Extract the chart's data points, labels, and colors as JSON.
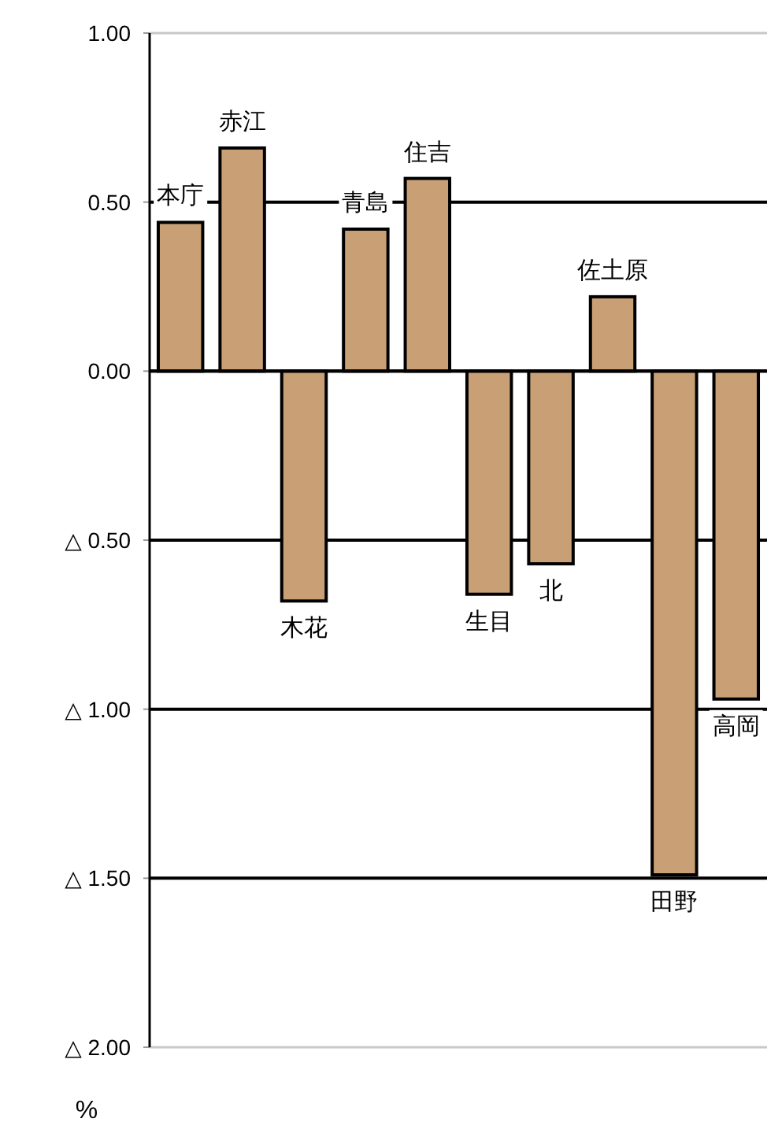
{
  "chart_data": {
    "type": "bar",
    "categories": [
      "本庁",
      "赤江",
      "木花",
      "青島",
      "住吉",
      "生目",
      "北",
      "佐土原",
      "田野",
      "高岡"
    ],
    "values": [
      0.44,
      0.66,
      -0.68,
      0.42,
      0.57,
      -0.66,
      -0.57,
      0.22,
      -1.49,
      -0.97
    ],
    "color": "#c9a076",
    "ylim": [
      -2,
      1
    ],
    "yticks": [
      {
        "value": 1,
        "label": "1.00"
      },
      {
        "value": 0.5,
        "label": "0.50"
      },
      {
        "value": 0,
        "label": "0.00"
      },
      {
        "value": -0.5,
        "label": "△ 0.50"
      },
      {
        "value": -1,
        "label": "△ 1.00"
      },
      {
        "value": -1.5,
        "label": "△ 1.50"
      },
      {
        "value": -2,
        "label": "△ 2.00"
      }
    ],
    "ylabel": "%",
    "grid": "y"
  }
}
